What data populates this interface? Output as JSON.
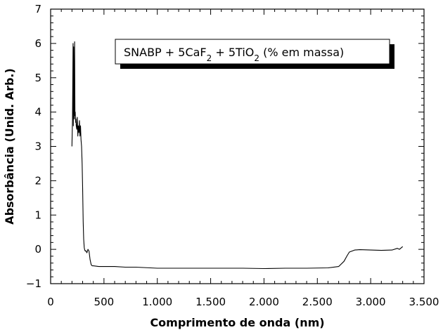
{
  "chart_data": {
    "type": "line",
    "title": "",
    "xlabel": "Comprimento de onda (nm)",
    "ylabel": "Absorbância (Unid. Arb.)",
    "xlim": [
      0,
      3500
    ],
    "ylim": [
      -1,
      7
    ],
    "x_ticks": [
      0,
      500,
      1000,
      1500,
      2000,
      2500,
      3000,
      3500
    ],
    "x_tick_labels": [
      "0",
      "500",
      "1.000",
      "1.500",
      "2.000",
      "2.500",
      "3.000",
      "3.500"
    ],
    "y_ticks": [
      -1,
      0,
      1,
      2,
      3,
      4,
      5,
      6,
      7
    ],
    "y_tick_labels": [
      "−1",
      "0",
      "1",
      "2",
      "3",
      "4",
      "5",
      "6",
      "7"
    ],
    "legend": {
      "position": "top-right",
      "text_parts": [
        {
          "text": "SNABP + 5CaF",
          "sub": false
        },
        {
          "text": "2",
          "sub": true
        },
        {
          "text": " + 5TiO",
          "sub": false
        },
        {
          "text": "2",
          "sub": true
        },
        {
          "text": " (% em massa)",
          "sub": false
        }
      ]
    },
    "series": [
      {
        "color": "#000000",
        "x": [
          200,
          205,
          210,
          213,
          216,
          219,
          222,
          225,
          228,
          231,
          234,
          237,
          240,
          245,
          250,
          255,
          260,
          265,
          270,
          275,
          280,
          285,
          290,
          295,
          300,
          305,
          310,
          315,
          320,
          325,
          330,
          340,
          350,
          360,
          370,
          380,
          390,
          400,
          450,
          500,
          600,
          700,
          800,
          1000,
          1200,
          1500,
          1800,
          2000,
          2200,
          2400,
          2600,
          2700,
          2750,
          2780,
          2800,
          2850,
          2900,
          3000,
          3100,
          3200,
          3250,
          3270,
          3300
        ],
        "y": [
          3.0,
          3.8,
          6.0,
          3.6,
          5.9,
          4.2,
          3.8,
          6.05,
          3.9,
          4.0,
          3.7,
          3.8,
          3.6,
          3.5,
          3.85,
          3.3,
          3.6,
          3.4,
          3.75,
          3.3,
          3.6,
          3.2,
          3.0,
          2.5,
          1.8,
          0.8,
          0.3,
          0.05,
          -0.02,
          -0.05,
          -0.04,
          -0.1,
          0.0,
          -0.05,
          -0.3,
          -0.45,
          -0.48,
          -0.48,
          -0.5,
          -0.5,
          -0.5,
          -0.52,
          -0.52,
          -0.55,
          -0.55,
          -0.55,
          -0.55,
          -0.56,
          -0.55,
          -0.55,
          -0.54,
          -0.5,
          -0.35,
          -0.18,
          -0.08,
          -0.02,
          -0.01,
          -0.02,
          -0.03,
          -0.02,
          0.03,
          0.0,
          0.08
        ]
      }
    ],
    "grid": false
  }
}
